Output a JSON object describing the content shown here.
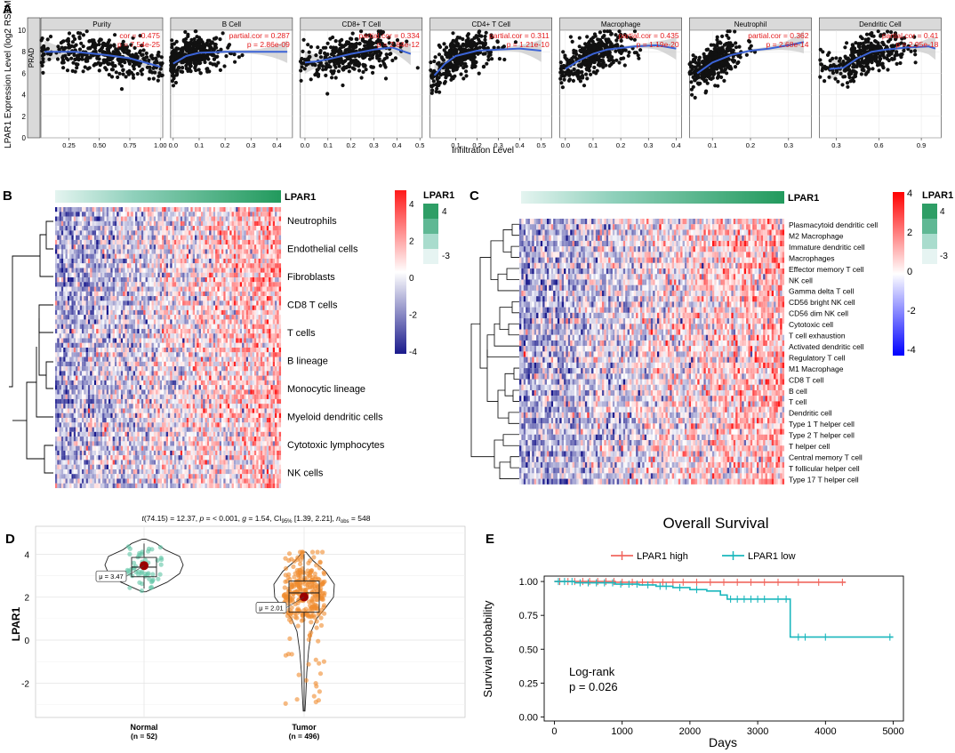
{
  "panel_labels": [
    "A",
    "B",
    "C",
    "D",
    "E"
  ],
  "chart_data": [
    {
      "panel": "A",
      "type": "scatter",
      "cancer_label": "PRAD",
      "ylabel": "LPAR1 Expression Level (log2 RSEM)",
      "xlabel": "Infiltration Level",
      "ylim": [
        0,
        10
      ],
      "yticks": [
        "0",
        "2",
        "4",
        "6",
        "8",
        "10"
      ],
      "facets": [
        {
          "title": "Purity",
          "stat1": "cor = -0.475",
          "stat2": "p = 7.54e-25",
          "xlim": [
            0.02,
            1.02
          ],
          "xticks": [
            0.25,
            0.5,
            0.75,
            1.0
          ],
          "xtick_labels": [
            "0.25",
            "0.50",
            "0.75",
            "1.00"
          ],
          "trend": [
            [
              0.05,
              8.0
            ],
            [
              0.3,
              8.0
            ],
            [
              0.55,
              7.7
            ],
            [
              0.75,
              7.4
            ],
            [
              1.0,
              6.6
            ]
          ],
          "cx": 0.55,
          "sx": 0.28,
          "slope": -1.5
        },
        {
          "title": "B Cell",
          "stat1": "partial.cor = 0.287",
          "stat2": "p = 2.86e-09",
          "xlim": [
            -0.01,
            0.46
          ],
          "xticks": [
            0.0,
            0.1,
            0.2,
            0.3,
            0.4
          ],
          "xtick_labels": [
            "0.0",
            "0.1",
            "0.2",
            "0.3",
            "0.4"
          ],
          "trend": [
            [
              0.0,
              6.9
            ],
            [
              0.05,
              7.6
            ],
            [
              0.1,
              7.9
            ],
            [
              0.2,
              8.0
            ],
            [
              0.3,
              8.0
            ],
            [
              0.44,
              8.0
            ]
          ],
          "cx": 0.07,
          "sx": 0.06,
          "slope": 5.0
        },
        {
          "title": "CD8+ T Cell",
          "stat1": "partial.cor = 0.334",
          "stat2": "p = 2.84e-12",
          "xlim": [
            -0.02,
            0.51
          ],
          "xticks": [
            0.0,
            0.1,
            0.2,
            0.3,
            0.4,
            0.5
          ],
          "xtick_labels": [
            "0.0",
            "0.1",
            "0.2",
            "0.3",
            "0.4",
            "0.5"
          ],
          "trend": [
            [
              0.0,
              7.0
            ],
            [
              0.05,
              7.1
            ],
            [
              0.1,
              7.3
            ],
            [
              0.2,
              7.8
            ],
            [
              0.3,
              8.2
            ],
            [
              0.38,
              8.4
            ],
            [
              0.46,
              7.8
            ]
          ],
          "cx": 0.18,
          "sx": 0.1,
          "slope": 4.0
        },
        {
          "title": "CD4+ T Cell",
          "stat1": "partial.cor = 0.311",
          "stat2": "p = 1.21e-10",
          "xlim": [
            -0.02,
            0.55
          ],
          "xticks": [
            0.1,
            0.2,
            0.3,
            0.4,
            0.5
          ],
          "xtick_labels": [
            "0.1",
            "0.2",
            "0.3",
            "0.4",
            "0.5"
          ],
          "trend": [
            [
              0.0,
              5.8
            ],
            [
              0.05,
              6.9
            ],
            [
              0.1,
              7.6
            ],
            [
              0.2,
              8.1
            ],
            [
              0.3,
              8.2
            ],
            [
              0.4,
              8.3
            ],
            [
              0.5,
              8.1
            ]
          ],
          "cx": 0.12,
          "sx": 0.08,
          "slope": 6.0
        },
        {
          "title": "Macrophage",
          "stat1": "partial.cor = 0.435",
          "stat2": "p = 1.19e-20",
          "xlim": [
            -0.02,
            0.42
          ],
          "xticks": [
            0.0,
            0.1,
            0.2,
            0.3,
            0.4
          ],
          "xtick_labels": [
            "0.0",
            "0.1",
            "0.2",
            "0.3",
            "0.4"
          ],
          "trend": [
            [
              0.0,
              6.4
            ],
            [
              0.05,
              7.2
            ],
            [
              0.1,
              7.8
            ],
            [
              0.15,
              8.2
            ],
            [
              0.25,
              8.5
            ],
            [
              0.33,
              8.6
            ],
            [
              0.4,
              8.3
            ]
          ],
          "cx": 0.1,
          "sx": 0.06,
          "slope": 7.0
        },
        {
          "title": "Neutrophil",
          "stat1": "partial.cor = 0.362",
          "stat2": "p = 2.68e-14",
          "xlim": [
            0.04,
            0.36
          ],
          "xticks": [
            0.1,
            0.2,
            0.3
          ],
          "xtick_labels": [
            "0.1",
            "0.2",
            "0.3"
          ],
          "trend": [
            [
              0.06,
              6.0
            ],
            [
              0.1,
              7.0
            ],
            [
              0.15,
              7.7
            ],
            [
              0.2,
              8.1
            ],
            [
              0.25,
              8.3
            ],
            [
              0.3,
              8.6
            ],
            [
              0.34,
              8.9
            ]
          ],
          "cx": 0.11,
          "sx": 0.035,
          "slope": 15.0
        },
        {
          "title": "Dendritic Cell",
          "stat1": "partial.cor = 0.41",
          "stat2": "p = 2.95e-18",
          "xlim": [
            0.18,
            1.04
          ],
          "xticks": [
            0.3,
            0.6,
            0.9
          ],
          "xtick_labels": [
            "0.3",
            "0.6",
            "0.9"
          ],
          "trend": [
            [
              0.25,
              6.4
            ],
            [
              0.35,
              6.5
            ],
            [
              0.45,
              7.4
            ],
            [
              0.55,
              8.0
            ],
            [
              0.65,
              8.2
            ],
            [
              0.8,
              8.4
            ],
            [
              0.95,
              8.5
            ],
            [
              1.0,
              8.3
            ]
          ],
          "cx": 0.5,
          "sx": 0.15,
          "slope": 3.0
        }
      ]
    },
    {
      "panel": "B",
      "type": "heatmap",
      "gene": "LPAR1",
      "rows": [
        "Neutrophils",
        "Endothelial cells",
        "Fibroblasts",
        "CD8 T cells",
        "T cells",
        "B lineage",
        "Monocytic lineage",
        "Myeloid dendritic cells",
        "Cytotoxic lymphocytes",
        "NK cells"
      ],
      "color_ticks": [
        "4",
        "2",
        "0",
        "-2",
        "-4"
      ],
      "legend_title": "LPAR1",
      "legend_labels": [
        "4",
        "-3"
      ]
    },
    {
      "panel": "C",
      "type": "heatmap",
      "gene": "LPAR1",
      "rows": [
        "Plasmacytoid dendritic cell",
        "M2 Macrophage",
        "Immature dendritic cell",
        "Macrophages",
        "Effector memory T cell",
        "NK cell",
        "Gamma delta T cell",
        "CD56 bright NK cell",
        "CD56 dim NK cell",
        "Cytotoxic cell",
        "T cell exhaustion",
        "Activated dendritic cell",
        "Regulatory T cell",
        "M1 Macrophage",
        "CD8 T cell",
        "B cell",
        "T cell",
        "Dendritic cell",
        "Type 1 T helper cell",
        "Type 2 T helper cell",
        "T helper cell",
        "Central memory T cell",
        "T follicular helper cell",
        "Type 17 T helper cell"
      ],
      "color_ticks": [
        "4",
        "2",
        "0",
        "-2",
        "-4"
      ],
      "legend_title": "LPAR1",
      "legend_labels": [
        "4",
        "-3"
      ]
    },
    {
      "panel": "D",
      "type": "violin",
      "subtitle_parts": [
        "t",
        "(74.15) = 12.37, ",
        "p",
        " = < 0.001, ",
        "g",
        " = 1.54, CI",
        "95%",
        " [1.39, 2.21], ",
        "n",
        "obs",
        " = 548"
      ],
      "ylabel": "LPAR1",
      "ylim": [
        -3.6,
        5.3
      ],
      "yticks": [
        -2,
        0,
        2,
        4
      ],
      "ytick_labels": [
        "-2",
        "0",
        "2",
        "4"
      ],
      "groups": [
        {
          "name": "Normal",
          "n_label": "(n = 52)",
          "mean_label": "μ = 3.47",
          "mean": 3.47,
          "q1": 2.95,
          "median": 3.4,
          "q3": 3.85,
          "min": 2.3,
          "max": 4.7,
          "n": 52,
          "color": "#5fc4a5"
        },
        {
          "name": "Tumor",
          "n_label": "(n = 496)",
          "mean_label": "μ = 2.01",
          "mean": 2.01,
          "q1": 1.3,
          "median": 2.2,
          "q3": 2.75,
          "min": -3.3,
          "max": 4.1,
          "n": 496,
          "color": "#f08c2e"
        }
      ]
    },
    {
      "panel": "E",
      "type": "line",
      "title": "Overall Survival",
      "xlabel": "Days",
      "ylabel": "Survival probability",
      "xlim": [
        -150,
        5150
      ],
      "ylim": [
        -0.03,
        1.04
      ],
      "xticks": [
        0,
        1000,
        2000,
        3000,
        4000,
        5000
      ],
      "xtick_labels": [
        "0",
        "1000",
        "2000",
        "3000",
        "4000",
        "5000"
      ],
      "yticks": [
        0.0,
        0.25,
        0.5,
        0.75,
        1.0
      ],
      "ytick_labels": [
        "0.00",
        "0.25",
        "0.50",
        "0.75",
        "1.00"
      ],
      "annotation": [
        "Log-rank",
        "p = 0.026"
      ],
      "series": [
        {
          "name": "LPAR1 high",
          "color": "#f0675f",
          "steps": [
            [
              0,
              1.0
            ],
            [
              600,
              1.0
            ],
            [
              900,
              0.995
            ],
            [
              4300,
              0.995
            ]
          ],
          "censor": [
            80,
            200,
            300,
            420,
            520,
            640,
            760,
            880,
            1000,
            1150,
            1300,
            1450,
            1600,
            1750,
            1900,
            2100,
            2300,
            2500,
            2700,
            2900,
            3100,
            3300,
            3600,
            3900,
            4250
          ]
        },
        {
          "name": "LPAR1 low",
          "color": "#1ab7bd",
          "steps": [
            [
              0,
              1.0
            ],
            [
              300,
              0.99
            ],
            [
              900,
              0.98
            ],
            [
              1250,
              0.975
            ],
            [
              1500,
              0.965
            ],
            [
              1750,
              0.955
            ],
            [
              2000,
              0.94
            ],
            [
              2250,
              0.93
            ],
            [
              2450,
              0.9
            ],
            [
              2550,
              0.87
            ],
            [
              3450,
              0.87
            ],
            [
              3480,
              0.59
            ],
            [
              5000,
              0.59
            ]
          ],
          "censor": [
            60,
            150,
            260,
            380,
            500,
            620,
            740,
            860,
            980,
            1100,
            1220,
            1380,
            1560,
            1650,
            1850,
            2100,
            2600,
            2700,
            2800,
            2900,
            3000,
            3100,
            3300,
            3420,
            3600,
            3700,
            4000,
            4950
          ]
        }
      ]
    }
  ]
}
